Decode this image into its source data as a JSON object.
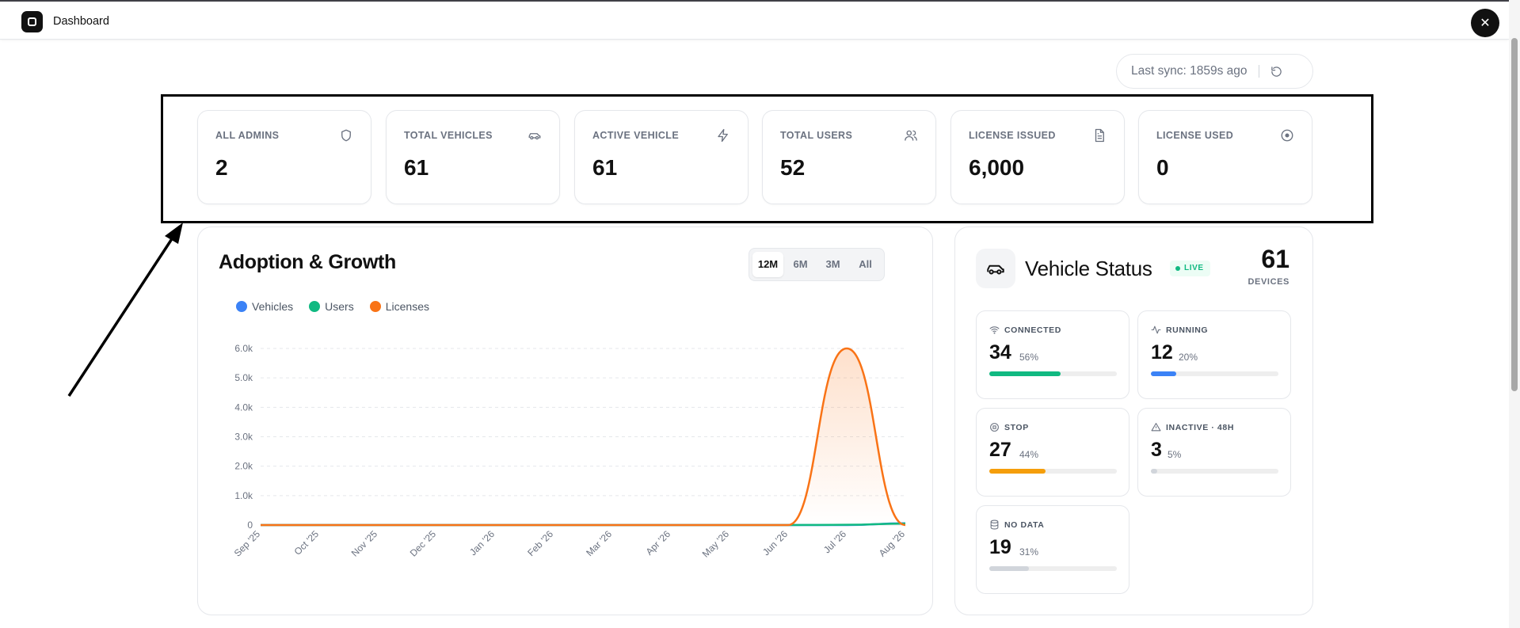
{
  "topbar": {
    "title": "Dashboard",
    "close_glyph": "✕"
  },
  "sync": {
    "text": "Last sync: 1859s ago"
  },
  "kpis": [
    {
      "label": "ALL ADMINS",
      "value": "2",
      "icon": "shield-icon"
    },
    {
      "label": "TOTAL VEHICLES",
      "value": "61",
      "icon": "car-icon"
    },
    {
      "label": "ACTIVE VEHICLE",
      "value": "61",
      "icon": "lightning-icon"
    },
    {
      "label": "TOTAL USERS",
      "value": "52",
      "icon": "users-icon"
    },
    {
      "label": "LICENSE ISSUED",
      "value": "6,000",
      "icon": "document-icon"
    },
    {
      "label": "LICENSE USED",
      "value": "0",
      "icon": "target-icon"
    }
  ],
  "growth": {
    "title": "Adoption & Growth",
    "ranges": [
      "12M",
      "6M",
      "3M",
      "All"
    ],
    "selected_range": "12M",
    "legend": [
      {
        "name": "Vehicles",
        "color": "#3b82f6"
      },
      {
        "name": "Users",
        "color": "#10b981"
      },
      {
        "name": "Licenses",
        "color": "#f97316"
      }
    ]
  },
  "chart_data": {
    "type": "line",
    "title": "Adoption & Growth",
    "x": [
      "Sep '25",
      "Oct '25",
      "Nov '25",
      "Dec '25",
      "Jan '26",
      "Feb '26",
      "Mar '26",
      "Apr '26",
      "May '26",
      "Jun '26",
      "Jul '26",
      "Aug '26"
    ],
    "y_ticks": [
      "0",
      "1.0k",
      "2.0k",
      "3.0k",
      "4.0k",
      "5.0k",
      "6.0k"
    ],
    "ylim": [
      0,
      6000
    ],
    "grid": true,
    "legend_position": "top-left",
    "series": [
      {
        "name": "Vehicles",
        "color": "#3b82f6",
        "values": [
          0,
          0,
          0,
          0,
          0,
          0,
          0,
          0,
          0,
          0,
          0,
          61
        ]
      },
      {
        "name": "Users",
        "color": "#10b981",
        "values": [
          0,
          0,
          0,
          0,
          0,
          0,
          0,
          0,
          0,
          0,
          10,
          52
        ]
      },
      {
        "name": "Licenses",
        "color": "#f97316",
        "values": [
          0,
          0,
          0,
          0,
          0,
          0,
          0,
          0,
          0,
          0,
          6000,
          0
        ]
      }
    ]
  },
  "vehicle_status": {
    "title": "Vehicle Status",
    "live_badge": "LIVE",
    "devices_count": "61",
    "devices_label": "DEVICES",
    "stats": [
      {
        "label": "CONNECTED",
        "value": "34",
        "pct": "56%",
        "fraction": 0.56,
        "color": "#10b981",
        "icon": "wifi-icon"
      },
      {
        "label": "RUNNING",
        "value": "12",
        "pct": "20%",
        "fraction": 0.2,
        "color": "#3b82f6",
        "icon": "activity-icon"
      },
      {
        "label": "STOP",
        "value": "27",
        "pct": "44%",
        "fraction": 0.44,
        "color": "#f59e0b",
        "icon": "stop-icon"
      },
      {
        "label": "INACTIVE · 48H",
        "value": "3",
        "pct": "5%",
        "fraction": 0.05,
        "color": "#d1d5db",
        "icon": "warning-icon"
      },
      {
        "label": "NO DATA",
        "value": "19",
        "pct": "31%",
        "fraction": 0.31,
        "color": "#d1d5db",
        "icon": "database-icon"
      }
    ]
  }
}
